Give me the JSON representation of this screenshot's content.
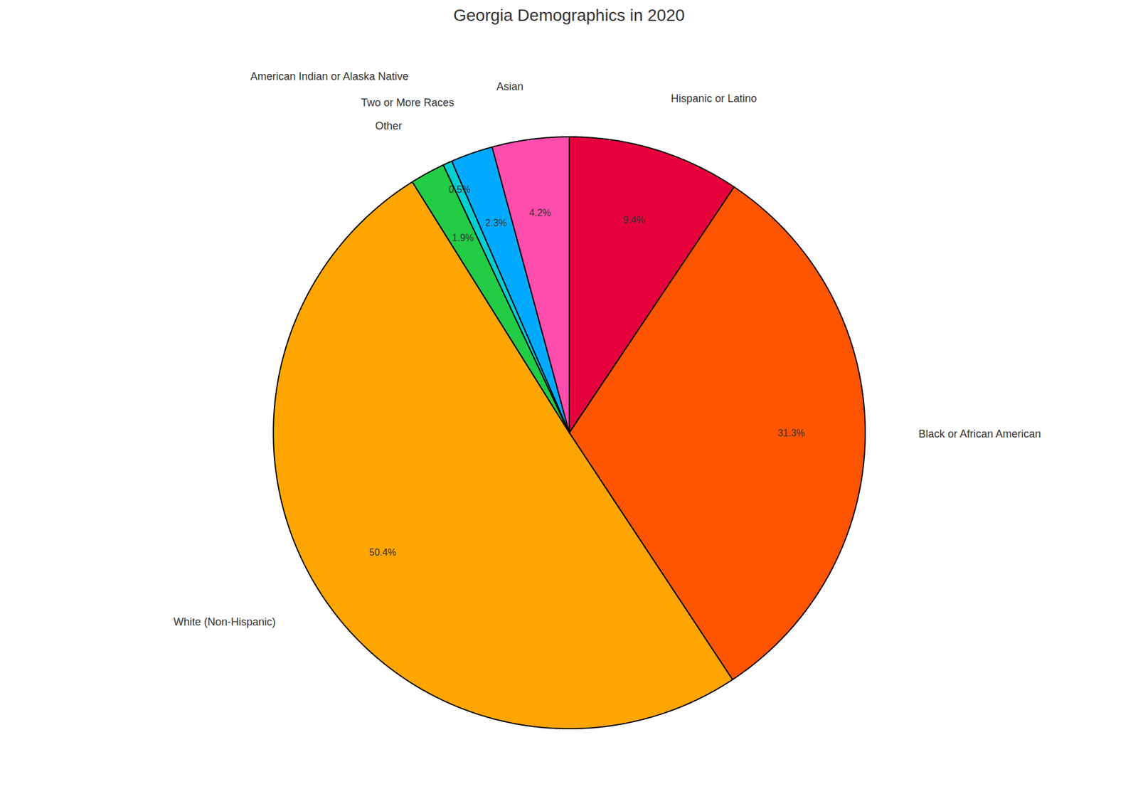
{
  "chart_data": {
    "type": "pie",
    "title": "Georgia Demographics in 2020",
    "categories": [
      "Hispanic or Latino",
      "Black or African American",
      "White (Non-Hispanic)",
      "Other",
      "American Indian or Alaska Native",
      "Two or More Races",
      "Asian"
    ],
    "values": [
      9.4,
      31.3,
      50.4,
      1.9,
      0.5,
      2.3,
      4.2
    ],
    "value_labels": [
      "9.4%",
      "31.3%",
      "50.4%",
      "1.9%",
      "0.5%",
      "2.3%",
      "4.2%"
    ],
    "colors": [
      "#E8003C",
      "#FF5500",
      "#FFA500",
      "#22CC44",
      "#00CED1",
      "#00AAFF",
      "#FF4DAD"
    ],
    "data_labels": true
  }
}
